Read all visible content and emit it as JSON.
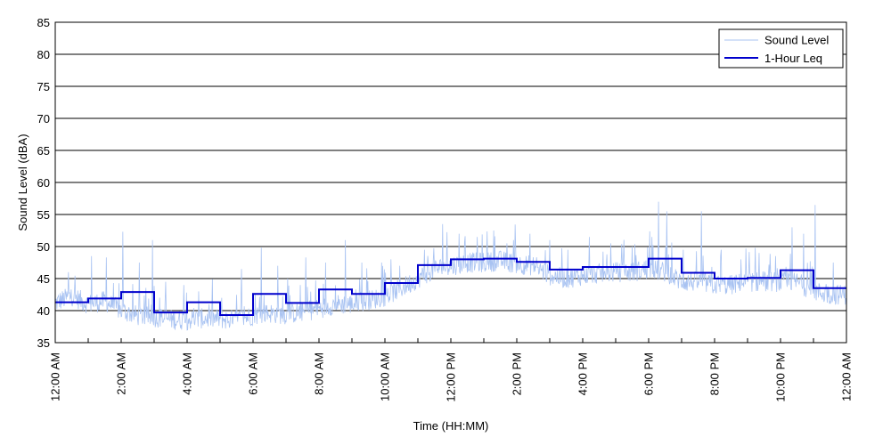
{
  "chart_data": {
    "type": "line",
    "title": "",
    "xlabel": "Time (HH:MM)",
    "ylabel": "Sound Level (dBA)",
    "ylim": [
      35,
      85
    ],
    "yticks": [
      35,
      40,
      45,
      50,
      55,
      60,
      65,
      70,
      75,
      80,
      85
    ],
    "xlim_hours": [
      0,
      24
    ],
    "xtick_labels": [
      "12:00 AM",
      "2:00 AM",
      "4:00 AM",
      "6:00 AM",
      "8:00 AM",
      "10:00 AM",
      "12:00 PM",
      "2:00 PM",
      "4:00 PM",
      "6:00 PM",
      "8:00 PM",
      "10:00 PM",
      "12:00 AM"
    ],
    "grid": "horizontal",
    "legend": {
      "placement": "top-right",
      "entries": [
        "Sound Level",
        "1-Hour Leq"
      ]
    },
    "series": [
      {
        "name": "Sound Level",
        "color": "#a9c3f2",
        "points": [
          {
            "hour": 0.0,
            "db": 41.2
          },
          {
            "hour": 0.5,
            "db": 42.3
          },
          {
            "hour": 1.0,
            "db": 41.0
          },
          {
            "hour": 1.5,
            "db": 41.5
          },
          {
            "hour": 2.0,
            "db": 40.0
          },
          {
            "hour": 2.5,
            "db": 39.2
          },
          {
            "hour": 3.0,
            "db": 39.0
          },
          {
            "hour": 3.5,
            "db": 38.6
          },
          {
            "hour": 4.0,
            "db": 38.5
          },
          {
            "hour": 4.5,
            "db": 38.8
          },
          {
            "hour": 5.0,
            "db": 38.7
          },
          {
            "hour": 5.5,
            "db": 38.5
          },
          {
            "hour": 6.0,
            "db": 39.3
          },
          {
            "hour": 6.5,
            "db": 39.6
          },
          {
            "hour": 7.0,
            "db": 39.4
          },
          {
            "hour": 7.5,
            "db": 39.8
          },
          {
            "hour": 8.0,
            "db": 40.3
          },
          {
            "hour": 8.5,
            "db": 41.0
          },
          {
            "hour": 9.0,
            "db": 41.0
          },
          {
            "hour": 9.5,
            "db": 41.6
          },
          {
            "hour": 10.0,
            "db": 42.2
          },
          {
            "hour": 10.5,
            "db": 43.5
          },
          {
            "hour": 11.0,
            "db": 45.0
          },
          {
            "hour": 11.5,
            "db": 46.5
          },
          {
            "hour": 12.0,
            "db": 47.0
          },
          {
            "hour": 12.5,
            "db": 47.5
          },
          {
            "hour": 13.0,
            "db": 47.5
          },
          {
            "hour": 13.5,
            "db": 47.8
          },
          {
            "hour": 14.0,
            "db": 47.3
          },
          {
            "hour": 14.5,
            "db": 47.0
          },
          {
            "hour": 15.0,
            "db": 45.5
          },
          {
            "hour": 15.5,
            "db": 45.0
          },
          {
            "hour": 16.0,
            "db": 45.5
          },
          {
            "hour": 16.5,
            "db": 45.8
          },
          {
            "hour": 17.0,
            "db": 46.0
          },
          {
            "hour": 17.5,
            "db": 46.0
          },
          {
            "hour": 18.0,
            "db": 46.5
          },
          {
            "hour": 18.5,
            "db": 46.0
          },
          {
            "hour": 19.0,
            "db": 44.5
          },
          {
            "hour": 19.5,
            "db": 44.5
          },
          {
            "hour": 20.0,
            "db": 44.0
          },
          {
            "hour": 20.5,
            "db": 44.0
          },
          {
            "hour": 21.0,
            "db": 44.5
          },
          {
            "hour": 21.5,
            "db": 44.5
          },
          {
            "hour": 22.0,
            "db": 44.5
          },
          {
            "hour": 22.5,
            "db": 44.5
          },
          {
            "hour": 23.0,
            "db": 43.0
          },
          {
            "hour": 23.5,
            "db": 42.5
          },
          {
            "hour": 24.0,
            "db": 42.5
          }
        ],
        "peaks": [
          {
            "hour": 0.4,
            "db": 46.0
          },
          {
            "hour": 1.1,
            "db": 48.5
          },
          {
            "hour": 1.55,
            "db": 48.3
          },
          {
            "hour": 2.05,
            "db": 52.3
          },
          {
            "hour": 2.55,
            "db": 47.5
          },
          {
            "hour": 2.95,
            "db": 51.0
          },
          {
            "hour": 3.35,
            "db": 44.5
          },
          {
            "hour": 3.9,
            "db": 44.0
          },
          {
            "hour": 4.35,
            "db": 43.0
          },
          {
            "hour": 5.05,
            "db": 42.0
          },
          {
            "hour": 5.65,
            "db": 46.5
          },
          {
            "hour": 6.25,
            "db": 49.8
          },
          {
            "hour": 6.75,
            "db": 47.0
          },
          {
            "hour": 7.05,
            "db": 45.0
          },
          {
            "hour": 7.6,
            "db": 48.3
          },
          {
            "hour": 8.2,
            "db": 47.5
          },
          {
            "hour": 8.8,
            "db": 51.0
          },
          {
            "hour": 9.3,
            "db": 47.5
          },
          {
            "hour": 9.9,
            "db": 47.5
          },
          {
            "hour": 10.45,
            "db": 47.0
          },
          {
            "hour": 11.2,
            "db": 49.5
          },
          {
            "hour": 11.75,
            "db": 53.5
          },
          {
            "hour": 12.25,
            "db": 52.0
          },
          {
            "hour": 12.8,
            "db": 51.5
          },
          {
            "hour": 13.3,
            "db": 52.5
          },
          {
            "hour": 13.9,
            "db": 51.0
          },
          {
            "hour": 14.4,
            "db": 52.0
          },
          {
            "hour": 15.0,
            "db": 51.0
          },
          {
            "hour": 15.55,
            "db": 49.5
          },
          {
            "hour": 16.2,
            "db": 51.5
          },
          {
            "hour": 16.85,
            "db": 50.5
          },
          {
            "hour": 17.5,
            "db": 50.0
          },
          {
            "hour": 18.1,
            "db": 51.5
          },
          {
            "hour": 18.3,
            "db": 57.0
          },
          {
            "hour": 18.55,
            "db": 55.5
          },
          {
            "hour": 19.05,
            "db": 49.5
          },
          {
            "hour": 19.6,
            "db": 55.5
          },
          {
            "hour": 20.2,
            "db": 49.5
          },
          {
            "hour": 20.8,
            "db": 48.0
          },
          {
            "hour": 21.35,
            "db": 49.0
          },
          {
            "hour": 21.85,
            "db": 48.5
          },
          {
            "hour": 22.35,
            "db": 53.0
          },
          {
            "hour": 22.7,
            "db": 52.0
          },
          {
            "hour": 23.05,
            "db": 56.5
          },
          {
            "hour": 23.6,
            "db": 47.5
          }
        ]
      },
      {
        "name": "1-Hour Leq",
        "color": "#0000cc",
        "step_start_hours": [
          0,
          1,
          2,
          3,
          4,
          5,
          6,
          7,
          8,
          9,
          10,
          11,
          12,
          13,
          14,
          15,
          16,
          17,
          18,
          19,
          20,
          21,
          22,
          23
        ],
        "values": [
          41.3,
          41.9,
          42.9,
          39.7,
          41.3,
          39.3,
          42.6,
          41.2,
          43.3,
          42.6,
          44.3,
          47.1,
          48.0,
          48.1,
          47.6,
          46.4,
          46.8,
          46.8,
          48.1,
          45.9,
          45.0,
          45.1,
          46.3,
          43.5
        ]
      }
    ]
  }
}
